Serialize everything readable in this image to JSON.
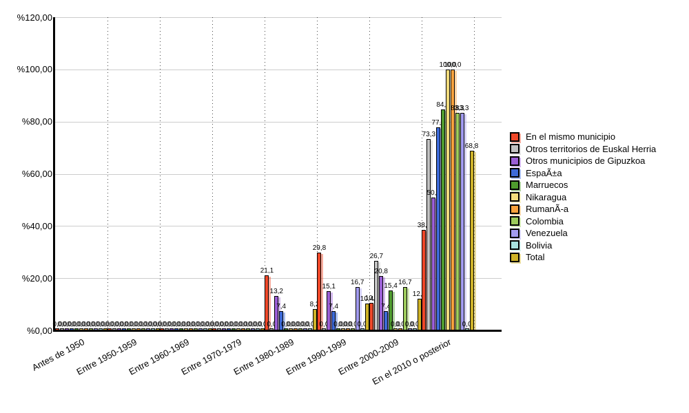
{
  "chart_data": {
    "type": "bar",
    "title": "",
    "xlabel": "",
    "ylabel": "",
    "categories": [
      "Antes de 1950",
      "Entre 1950-1959",
      "Entre 1960-1969",
      "Entre 1970-1979",
      "Entre 1980-1989",
      "Entre 1990-1999",
      "Entre 2000-2009",
      "En el 2010 o posterior"
    ],
    "series": [
      {
        "name": "En el mismo municipio",
        "color": "#EF4829",
        "values": [
          0,
          0,
          0,
          0,
          21.1,
          29.8,
          10.5,
          38.6
        ]
      },
      {
        "name": "Otros territorios de Euskal Herria",
        "color": "#C2C2C2",
        "values": [
          0,
          0,
          0,
          0,
          0,
          0,
          26.7,
          73.3
        ]
      },
      {
        "name": "Otros municipios de Gipuzkoa",
        "color": "#9B5FD6",
        "values": [
          0,
          0,
          0,
          0,
          13.2,
          15.1,
          20.8,
          50.9
        ]
      },
      {
        "name": "EspaÃ±a",
        "color": "#3D6AD8",
        "values": [
          0,
          0,
          0,
          0,
          7.4,
          7.4,
          7.4,
          77.8
        ]
      },
      {
        "name": "Marruecos",
        "color": "#4F9C2E",
        "values": [
          0,
          0,
          0,
          0,
          0,
          0,
          15.4,
          84.6
        ]
      },
      {
        "name": "Nikaragua",
        "color": "#F2DC7D",
        "values": [
          0,
          0,
          0,
          0,
          0,
          0,
          0,
          100
        ]
      },
      {
        "name": "RumanÃ-a",
        "color": "#FAA23D",
        "values": [
          0,
          0,
          0,
          0,
          0,
          0,
          0,
          100
        ]
      },
      {
        "name": "Colombia",
        "color": "#9DCB5B",
        "values": [
          0,
          0,
          0,
          0,
          0,
          0,
          16.7,
          83.3
        ]
      },
      {
        "name": "Venezuela",
        "color": "#A29BF0",
        "values": [
          0,
          0,
          0,
          0,
          0,
          16.7,
          0,
          83.3
        ]
      },
      {
        "name": "Bolivia",
        "color": "#A9E2DE",
        "values": [
          0,
          0,
          0,
          0,
          0,
          0,
          0,
          0
        ]
      },
      {
        "name": "Total",
        "color": "#CEB228",
        "values": [
          0,
          0,
          0,
          0,
          8.2,
          10.4,
          12.1,
          68.8
        ]
      }
    ],
    "y_axis": {
      "min": 0,
      "max": 120,
      "step": 20,
      "tick_labels": [
        "%0,00",
        "%20,00",
        "%40,00",
        "%60,00",
        "%80,00",
        "%100,00",
        "%120,00"
      ]
    },
    "decimal_separator": ",",
    "value_labels_shown": true,
    "grid": true,
    "legend_position": "right"
  }
}
